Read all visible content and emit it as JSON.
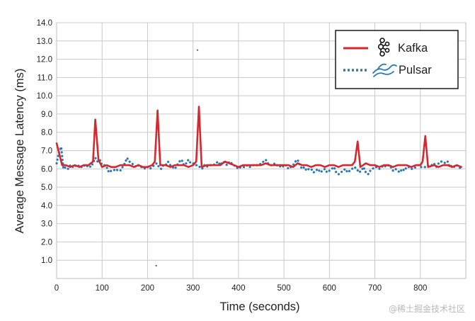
{
  "chart_data": {
    "type": "line",
    "title": "",
    "xlabel": "Time (seconds)",
    "ylabel": "Average Message Latency (ms)",
    "xlim": [
      0,
      900
    ],
    "ylim": [
      0,
      14
    ],
    "x_ticks": [
      0,
      100,
      200,
      300,
      400,
      500,
      600,
      700,
      800
    ],
    "y_ticks": [
      1.0,
      2.0,
      3.0,
      4.0,
      5.0,
      6.0,
      7.0,
      8.0,
      9.0,
      10.0,
      11.0,
      12.0,
      13.0,
      14.0
    ],
    "grid": true,
    "legend_position": "top-right",
    "series": [
      {
        "name": "Kafka",
        "color": "#d6262e",
        "style": "solid",
        "icon": "kafka-logo-icon",
        "points": [
          [
            0,
            7.4
          ],
          [
            5,
            6.9
          ],
          [
            12,
            6.2
          ],
          [
            20,
            6.2
          ],
          [
            30,
            6.1
          ],
          [
            40,
            6.2
          ],
          [
            50,
            6.1
          ],
          [
            60,
            6.2
          ],
          [
            70,
            6.2
          ],
          [
            80,
            6.4
          ],
          [
            85,
            8.7
          ],
          [
            92,
            6.5
          ],
          [
            100,
            6.1
          ],
          [
            110,
            6.2
          ],
          [
            120,
            6.1
          ],
          [
            130,
            6.1
          ],
          [
            140,
            6.2
          ],
          [
            150,
            6.2
          ],
          [
            160,
            6.2
          ],
          [
            170,
            6.1
          ],
          [
            180,
            6.2
          ],
          [
            190,
            6.1
          ],
          [
            200,
            6.1
          ],
          [
            210,
            6.2
          ],
          [
            216,
            6.4
          ],
          [
            222,
            9.2
          ],
          [
            228,
            6.2
          ],
          [
            240,
            6.2
          ],
          [
            250,
            6.1
          ],
          [
            260,
            6.2
          ],
          [
            270,
            6.2
          ],
          [
            280,
            6.2
          ],
          [
            290,
            6.1
          ],
          [
            300,
            6.2
          ],
          [
            307,
            6.4
          ],
          [
            313,
            9.4
          ],
          [
            319,
            6.1
          ],
          [
            330,
            6.2
          ],
          [
            340,
            6.2
          ],
          [
            350,
            6.2
          ],
          [
            360,
            6.2
          ],
          [
            370,
            6.4
          ],
          [
            380,
            6.3
          ],
          [
            390,
            6.2
          ],
          [
            400,
            6.1
          ],
          [
            410,
            6.2
          ],
          [
            420,
            6.2
          ],
          [
            430,
            6.2
          ],
          [
            440,
            6.2
          ],
          [
            450,
            6.2
          ],
          [
            460,
            6.3
          ],
          [
            470,
            6.2
          ],
          [
            480,
            6.2
          ],
          [
            490,
            6.2
          ],
          [
            500,
            6.2
          ],
          [
            510,
            6.2
          ],
          [
            520,
            6.1
          ],
          [
            530,
            6.3
          ],
          [
            540,
            6.2
          ],
          [
            550,
            6.2
          ],
          [
            560,
            6.1
          ],
          [
            570,
            6.2
          ],
          [
            580,
            6.2
          ],
          [
            590,
            6.1
          ],
          [
            600,
            6.2
          ],
          [
            610,
            6.2
          ],
          [
            620,
            6.1
          ],
          [
            630,
            6.2
          ],
          [
            640,
            6.2
          ],
          [
            650,
            6.2
          ],
          [
            656,
            6.4
          ],
          [
            662,
            7.5
          ],
          [
            668,
            6.1
          ],
          [
            680,
            6.3
          ],
          [
            690,
            6.2
          ],
          [
            700,
            6.2
          ],
          [
            710,
            6.1
          ],
          [
            720,
            6.2
          ],
          [
            730,
            6.2
          ],
          [
            740,
            6.1
          ],
          [
            750,
            6.2
          ],
          [
            760,
            6.2
          ],
          [
            770,
            6.2
          ],
          [
            780,
            6.1
          ],
          [
            790,
            6.2
          ],
          [
            800,
            6.2
          ],
          [
            805,
            6.4
          ],
          [
            811,
            7.8
          ],
          [
            817,
            6.1
          ],
          [
            830,
            6.2
          ],
          [
            840,
            6.1
          ],
          [
            850,
            6.2
          ],
          [
            860,
            6.2
          ],
          [
            870,
            6.1
          ],
          [
            880,
            6.2
          ],
          [
            890,
            6.1
          ]
        ]
      },
      {
        "name": "Pulsar",
        "color": "#2b78b3",
        "style": "dotted",
        "icon": "pulsar-logo-icon",
        "points": [
          [
            0,
            6.3
          ],
          [
            5,
            6.9
          ],
          [
            10,
            7.2
          ],
          [
            15,
            6.0
          ],
          [
            20,
            6.1
          ],
          [
            25,
            6.0
          ],
          [
            30,
            6.2
          ],
          [
            35,
            6.1
          ],
          [
            40,
            6.2
          ],
          [
            45,
            6.1
          ],
          [
            50,
            6.2
          ],
          [
            55,
            6.1
          ],
          [
            60,
            6.2
          ],
          [
            65,
            6.1
          ],
          [
            70,
            6.2
          ],
          [
            75,
            6.1
          ],
          [
            80,
            6.3
          ],
          [
            85,
            6.6
          ],
          [
            90,
            6.4
          ],
          [
            95,
            6.5
          ],
          [
            100,
            6.2
          ],
          [
            105,
            6.2
          ],
          [
            110,
            6.1
          ],
          [
            115,
            5.8
          ],
          [
            120,
            5.9
          ],
          [
            125,
            5.9
          ],
          [
            130,
            6.0
          ],
          [
            135,
            5.9
          ],
          [
            140,
            5.9
          ],
          [
            145,
            6.1
          ],
          [
            150,
            6.3
          ],
          [
            155,
            6.6
          ],
          [
            160,
            6.4
          ],
          [
            165,
            6.3
          ],
          [
            170,
            6.2
          ],
          [
            175,
            6.1
          ],
          [
            180,
            6.2
          ],
          [
            185,
            6.1
          ],
          [
            190,
            6.1
          ],
          [
            195,
            6.0
          ],
          [
            200,
            6.1
          ],
          [
            205,
            6.0
          ],
          [
            210,
            6.1
          ],
          [
            215,
            6.2
          ],
          [
            220,
            6.3
          ],
          [
            225,
            6.1
          ],
          [
            230,
            6.0
          ],
          [
            235,
            6.2
          ],
          [
            240,
            6.2
          ],
          [
            245,
            6.4
          ],
          [
            250,
            6.2
          ],
          [
            255,
            6.1
          ],
          [
            260,
            6.0
          ],
          [
            265,
            6.2
          ],
          [
            270,
            6.4
          ],
          [
            275,
            6.5
          ],
          [
            280,
            6.2
          ],
          [
            285,
            6.3
          ],
          [
            290,
            6.5
          ],
          [
            295,
            6.3
          ],
          [
            300,
            6.3
          ],
          [
            305,
            6.2
          ],
          [
            310,
            6.2
          ],
          [
            315,
            6.1
          ],
          [
            320,
            6.0
          ],
          [
            325,
            6.2
          ],
          [
            330,
            6.1
          ],
          [
            335,
            6.2
          ],
          [
            340,
            6.2
          ],
          [
            345,
            6.2
          ],
          [
            350,
            6.3
          ],
          [
            355,
            6.4
          ],
          [
            360,
            6.2
          ],
          [
            365,
            6.4
          ],
          [
            370,
            6.3
          ],
          [
            375,
            6.2
          ],
          [
            380,
            6.4
          ],
          [
            385,
            6.3
          ],
          [
            390,
            6.2
          ],
          [
            395,
            6.1
          ],
          [
            400,
            6.0
          ],
          [
            405,
            6.1
          ],
          [
            410,
            6.1
          ],
          [
            415,
            6.1
          ],
          [
            420,
            6.2
          ],
          [
            425,
            6.1
          ],
          [
            430,
            6.2
          ],
          [
            435,
            6.2
          ],
          [
            440,
            6.2
          ],
          [
            445,
            6.2
          ],
          [
            450,
            6.3
          ],
          [
            455,
            6.4
          ],
          [
            460,
            6.5
          ],
          [
            465,
            6.3
          ],
          [
            470,
            6.2
          ],
          [
            475,
            6.2
          ],
          [
            480,
            6.3
          ],
          [
            485,
            6.2
          ],
          [
            490,
            6.1
          ],
          [
            495,
            6.2
          ],
          [
            500,
            6.1
          ],
          [
            505,
            6.2
          ],
          [
            510,
            6.0
          ],
          [
            515,
            6.1
          ],
          [
            520,
            6.2
          ],
          [
            525,
            6.4
          ],
          [
            530,
            6.5
          ],
          [
            535,
            6.2
          ],
          [
            540,
            6.0
          ],
          [
            545,
            6.1
          ],
          [
            550,
            5.9
          ],
          [
            555,
            6.0
          ],
          [
            560,
            6.0
          ],
          [
            565,
            5.8
          ],
          [
            570,
            5.9
          ],
          [
            575,
            6.0
          ],
          [
            580,
            5.8
          ],
          [
            585,
            5.9
          ],
          [
            590,
            6.0
          ],
          [
            595,
            5.8
          ],
          [
            600,
            5.9
          ],
          [
            605,
            6.0
          ],
          [
            610,
            6.1
          ],
          [
            615,
            5.8
          ],
          [
            620,
            5.7
          ],
          [
            625,
            5.8
          ],
          [
            630,
            5.9
          ],
          [
            635,
            6.0
          ],
          [
            640,
            5.8
          ],
          [
            645,
            5.9
          ],
          [
            650,
            6.0
          ],
          [
            655,
            6.1
          ],
          [
            660,
            6.0
          ],
          [
            665,
            5.8
          ],
          [
            670,
            5.9
          ],
          [
            675,
            6.1
          ],
          [
            680,
            5.8
          ],
          [
            685,
            5.7
          ],
          [
            690,
            5.9
          ],
          [
            695,
            6.0
          ],
          [
            700,
            6.1
          ],
          [
            705,
            6.1
          ],
          [
            710,
            6.0
          ],
          [
            715,
            6.1
          ],
          [
            720,
            6.2
          ],
          [
            725,
            6.1
          ],
          [
            730,
            6.2
          ],
          [
            735,
            6.1
          ],
          [
            740,
            5.9
          ],
          [
            745,
            6.0
          ],
          [
            750,
            5.9
          ],
          [
            755,
            5.8
          ],
          [
            760,
            6.0
          ],
          [
            765,
            5.9
          ],
          [
            770,
            6.1
          ],
          [
            775,
            6.1
          ],
          [
            780,
            6.0
          ],
          [
            785,
            6.0
          ],
          [
            790,
            6.1
          ],
          [
            795,
            6.2
          ],
          [
            800,
            6.1
          ],
          [
            805,
            6.1
          ],
          [
            810,
            6.1
          ],
          [
            815,
            6.1
          ],
          [
            820,
            6.2
          ],
          [
            825,
            6.2
          ],
          [
            830,
            6.3
          ],
          [
            835,
            6.1
          ],
          [
            840,
            6.3
          ],
          [
            845,
            6.4
          ],
          [
            850,
            6.4
          ],
          [
            855,
            6.3
          ],
          [
            860,
            6.4
          ],
          [
            865,
            6.1
          ],
          [
            870,
            6.2
          ],
          [
            875,
            6.1
          ],
          [
            880,
            6.2
          ],
          [
            885,
            6.1
          ],
          [
            890,
            6.0
          ]
        ]
      }
    ],
    "stray_marks": [
      [
        310,
        12.5
      ],
      [
        219,
        0.7
      ]
    ]
  },
  "watermark": "@稀土掘金技术社区"
}
